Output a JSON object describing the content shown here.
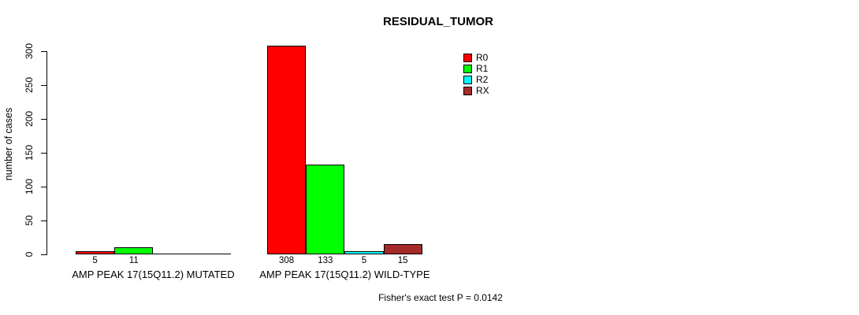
{
  "chart_data": {
    "type": "bar",
    "title": "RESIDUAL_TUMOR",
    "xlabel": "",
    "ylabel": "number of cases",
    "ylim": [
      0,
      300
    ],
    "yticks": [
      0,
      50,
      100,
      150,
      200,
      250,
      300
    ],
    "grid": false,
    "legend_position": "top-right",
    "categories": [
      "AMP PEAK 17(15Q11.2) MUTATED",
      "AMP PEAK 17(15Q11.2) WILD-TYPE"
    ],
    "series": [
      {
        "name": "R0",
        "color": "#FF0000",
        "values": [
          5,
          308
        ]
      },
      {
        "name": "R1",
        "color": "#00FF00",
        "values": [
          11,
          133
        ]
      },
      {
        "name": "R2",
        "color": "#00FFFF",
        "values": [
          0,
          5
        ]
      },
      {
        "name": "RX",
        "color": "#A52A2A",
        "values": [
          0,
          15
        ]
      }
    ],
    "bar_value_labels": [
      [
        "5",
        "11",
        null,
        null
      ],
      [
        "308",
        "133",
        "5",
        "15"
      ]
    ],
    "annotation": "Fisher's exact test P = 0.0142"
  },
  "colors": {
    "background": "#FFFFFF",
    "axis": "#000000",
    "text": "#000000"
  }
}
